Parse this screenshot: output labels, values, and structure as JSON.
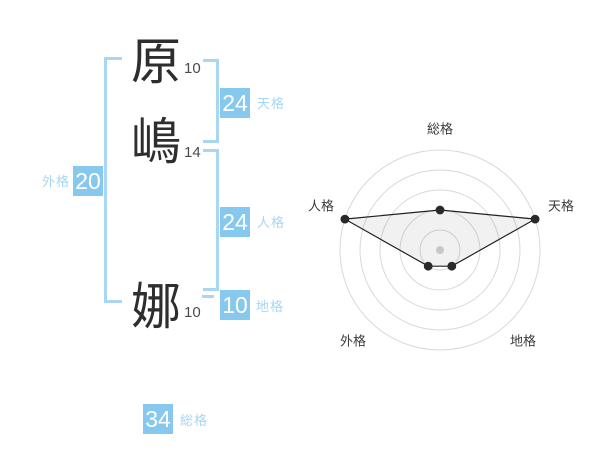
{
  "name_diagram": {
    "chars": [
      {
        "char": "原",
        "strokes": "10",
        "role": "surname"
      },
      {
        "char": "嶋",
        "strokes": "14",
        "role": "surname"
      },
      {
        "char": "娜",
        "strokes": "10",
        "role": "given"
      }
    ],
    "badges": {
      "gaikaku": {
        "label": "外格",
        "value": "20"
      },
      "tenkaku": {
        "label": "天格",
        "value": "24"
      },
      "jinkaku": {
        "label": "人格",
        "value": "24"
      },
      "chikaku": {
        "label": "地格",
        "value": "10"
      },
      "soukaku": {
        "label": "総格",
        "value": "34"
      }
    }
  },
  "chart_data": {
    "type": "radar",
    "categories": [
      "総格",
      "天格",
      "地格",
      "外格",
      "人格"
    ],
    "values": [
      2,
      5,
      1,
      1,
      5
    ],
    "max": 5,
    "rings": 5,
    "grid": "concentric-circles",
    "legend": "none",
    "title": ""
  },
  "colors": {
    "accent_blue": "#87c9ee",
    "light_blue": "#a6d7f3",
    "radar_line": "#222222",
    "radar_point": "#2a2a2a",
    "radar_ring": "#d9d9d9",
    "radar_center_dot": "#c9c9c9",
    "radar_fill": "rgba(80,80,80,0.08)",
    "text_dark": "#2e2e2e"
  }
}
